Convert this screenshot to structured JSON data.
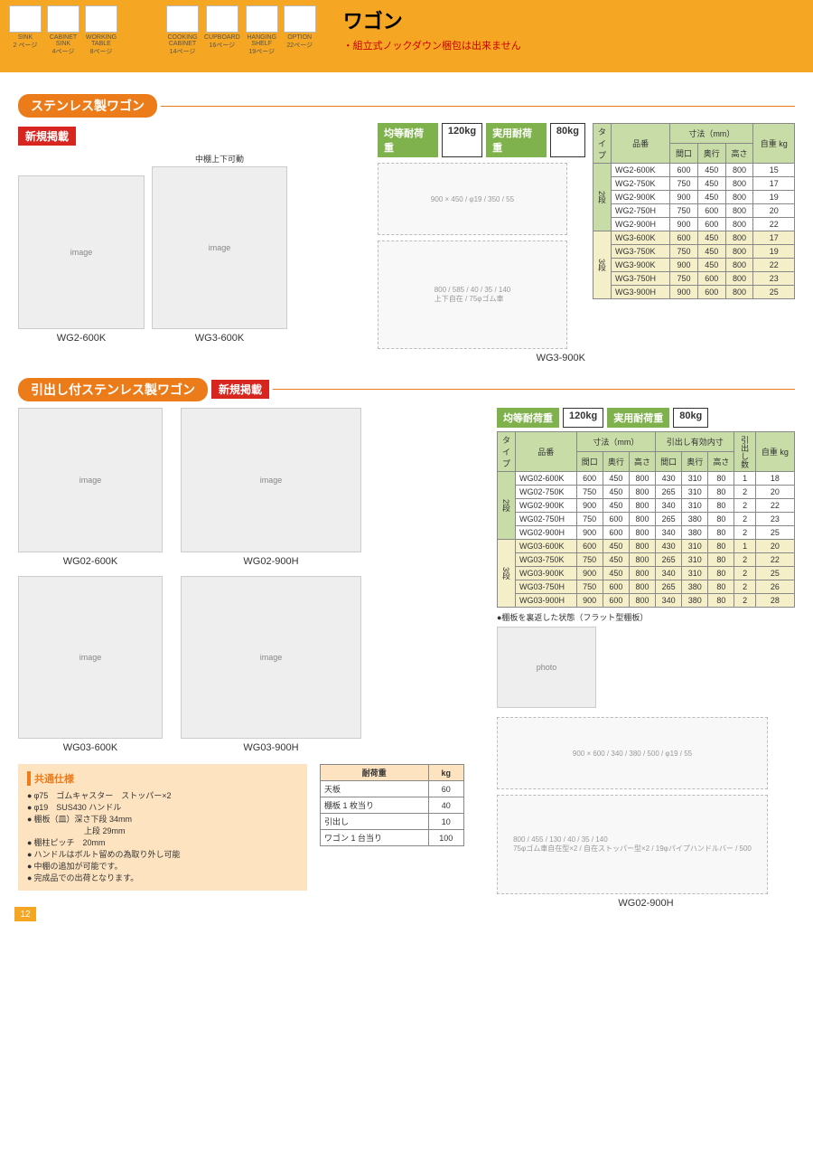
{
  "page_number": "12",
  "nav": [
    {
      "label": "SINK",
      "sub": "2 ページ"
    },
    {
      "label": "CABINET\nSINK",
      "sub": "4ページ"
    },
    {
      "label": "WORKING\nTABLE",
      "sub": "8ページ"
    },
    {
      "label": "",
      "sub": ""
    },
    {
      "label": "COOKING\nCABINET",
      "sub": "14ページ"
    },
    {
      "label": "CUPBOARD",
      "sub": "16ページ"
    },
    {
      "label": "HANGING\nSHELF",
      "sub": "19ページ"
    },
    {
      "label": "OPTION",
      "sub": "22ページ"
    }
  ],
  "title": "ワゴン",
  "subtitle": "・組立式ノックダウン梱包は出来ません",
  "section1": {
    "heading": "ステンレス製ワゴン",
    "new_label": "新規掲載",
    "load1_label": "均等耐荷重",
    "load1_val": "120kg",
    "load2_label": "実用耐荷重",
    "load2_val": "80kg",
    "product_labels": [
      "WG2-600K",
      "WG3-600K",
      "WG3-900K"
    ],
    "note_mid": "中棚上下可動",
    "diagram_notes": [
      "上下自在",
      "75φゴム車\n自在型×2",
      "75φゴム車\n自在ストッパー型×2",
      "19φパイプ\nハンドルバー"
    ],
    "table": {
      "head_group": "寸法（mm）",
      "head": [
        "タイプ",
        "品番",
        "間口",
        "奥行",
        "高さ",
        "自重\nkg"
      ],
      "groups": [
        {
          "type": "2段",
          "rows": [
            [
              "WG2-600K",
              "600",
              "450",
              "800",
              "15"
            ],
            [
              "WG2-750K",
              "750",
              "450",
              "800",
              "17"
            ],
            [
              "WG2-900K",
              "900",
              "450",
              "800",
              "19"
            ],
            [
              "WG2-750H",
              "750",
              "600",
              "800",
              "20"
            ],
            [
              "WG2-900H",
              "900",
              "600",
              "800",
              "22"
            ]
          ]
        },
        {
          "type": "3段",
          "rows": [
            [
              "WG3-600K",
              "600",
              "450",
              "800",
              "17"
            ],
            [
              "WG3-750K",
              "750",
              "450",
              "800",
              "19"
            ],
            [
              "WG3-900K",
              "900",
              "450",
              "800",
              "22"
            ],
            [
              "WG3-750H",
              "750",
              "600",
              "800",
              "23"
            ],
            [
              "WG3-900H",
              "900",
              "600",
              "800",
              "25"
            ]
          ]
        }
      ]
    }
  },
  "section2": {
    "heading": "引出し付ステンレス製ワゴン",
    "new_label": "新規掲載",
    "load1_label": "均等耐荷重",
    "load1_val": "120kg",
    "load2_label": "実用耐荷重",
    "load2_val": "80kg",
    "product_labels": [
      "WG02-600K",
      "WG02-900H",
      "WG03-600K",
      "WG03-900H"
    ],
    "flat_note": "●棚板を裏返した状態（フラット型棚板）",
    "diagram_label": "WG02-900H",
    "table": {
      "head_group1": "寸法（mm）",
      "head_group2": "引出し有効内寸",
      "head": [
        "タイプ",
        "品番",
        "間口",
        "奥行",
        "高さ",
        "間口",
        "奥行",
        "高さ",
        "引出し数",
        "自重\nkg"
      ],
      "groups": [
        {
          "type": "2段",
          "rows": [
            [
              "WG02-600K",
              "600",
              "450",
              "800",
              "430",
              "310",
              "80",
              "1",
              "18"
            ],
            [
              "WG02-750K",
              "750",
              "450",
              "800",
              "265",
              "310",
              "80",
              "2",
              "20"
            ],
            [
              "WG02-900K",
              "900",
              "450",
              "800",
              "340",
              "310",
              "80",
              "2",
              "22"
            ],
            [
              "WG02-750H",
              "750",
              "600",
              "800",
              "265",
              "380",
              "80",
              "2",
              "23"
            ],
            [
              "WG02-900H",
              "900",
              "600",
              "800",
              "340",
              "380",
              "80",
              "2",
              "25"
            ]
          ]
        },
        {
          "type": "3段",
          "rows": [
            [
              "WG03-600K",
              "600",
              "450",
              "800",
              "430",
              "310",
              "80",
              "1",
              "20"
            ],
            [
              "WG03-750K",
              "750",
              "450",
              "800",
              "265",
              "310",
              "80",
              "2",
              "22"
            ],
            [
              "WG03-900K",
              "900",
              "450",
              "800",
              "340",
              "310",
              "80",
              "2",
              "25"
            ],
            [
              "WG03-750H",
              "750",
              "600",
              "800",
              "265",
              "380",
              "80",
              "2",
              "26"
            ],
            [
              "WG03-900H",
              "900",
              "600",
              "800",
              "340",
              "380",
              "80",
              "2",
              "28"
            ]
          ]
        }
      ]
    }
  },
  "common_spec": {
    "title": "共通仕様",
    "items": [
      "φ75　ゴムキャスター　ストッパー×2",
      "φ19　SUS430 ハンドル",
      "棚板（皿）深さ下段 34mm\n　　　　　　　上段 29mm",
      "棚柱ピッチ　20mm",
      "ハンドルはボルト留めの為取り外し可能",
      "中棚の追加が可能です。",
      "完成品での出荷となります。"
    ]
  },
  "load_table": {
    "head": [
      "耐荷重",
      "kg"
    ],
    "rows": [
      [
        "天板",
        "60"
      ],
      [
        "棚板 1 枚当り",
        "40"
      ],
      [
        "引出し",
        "10"
      ],
      [
        "ワゴン 1 台当り",
        "100"
      ]
    ]
  },
  "colors": {
    "orange": "#ec7b1a",
    "bar": "#f5a623",
    "red": "#d7261f",
    "green_head": "#c8dca8",
    "row_yellow": "#f4efc8",
    "spec_bg": "#fde3c0"
  }
}
